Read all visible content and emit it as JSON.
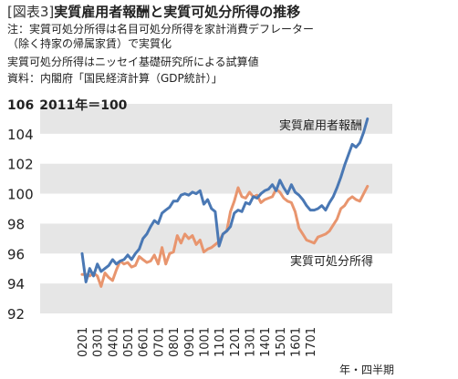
{
  "figure": {
    "label": "[図表3]",
    "title": "実質雇用者報酬と実質可処分所得の推移",
    "notes": [
      "注：実質可処分所得は名目可処分所得を家計消費デフレーター",
      "（除く持家の帰属家賃）で実質化",
      "実質可処分所得はニッセイ基礎研究所による試算値",
      "資料：内閣府「国民経済計算（GDP統計）」"
    ]
  },
  "chart_data": {
    "type": "line",
    "y_unit_label": "2011年＝100",
    "xlabel": "年・四半期",
    "ylim": [
      92,
      106
    ],
    "yticks": [
      92,
      94,
      96,
      98,
      100,
      102,
      104,
      106
    ],
    "grid": "horizontal bands",
    "x_tick_labels": [
      "0201",
      "0301",
      "0401",
      "0501",
      "0601",
      "0701",
      "0801",
      "0901",
      "1001",
      "1101",
      "1201",
      "1301",
      "1401",
      "1501",
      "1601",
      "1701"
    ],
    "x_start": "2002Q1",
    "series": [
      {
        "name": "実質雇用者報酬",
        "color": "#4a78b4",
        "values": [
          96.0,
          94.1,
          95.0,
          94.5,
          95.3,
          94.8,
          95.0,
          95.2,
          95.6,
          95.3,
          95.5,
          95.6,
          95.9,
          95.6,
          96.0,
          96.3,
          97.0,
          97.3,
          97.8,
          98.2,
          98.0,
          98.7,
          98.9,
          99.1,
          99.5,
          99.5,
          99.9,
          100.0,
          99.9,
          100.1,
          100.0,
          100.2,
          99.3,
          99.6,
          99.0,
          98.8,
          96.5,
          97.3,
          97.5,
          97.8,
          98.7,
          98.9,
          98.8,
          99.4,
          99.3,
          99.8,
          99.7,
          100.0,
          100.2,
          100.3,
          100.6,
          100.2,
          100.9,
          100.4,
          100.0,
          100.6,
          100.1,
          99.9,
          99.6,
          99.2,
          98.9,
          98.9,
          99.0,
          99.2,
          98.9,
          99.4,
          99.8,
          100.4,
          101.1,
          101.9,
          102.6,
          103.3,
          103.1,
          103.4,
          104.1,
          105.0
        ]
      },
      {
        "name": "実質可処分所得",
        "color": "#e8956e",
        "values": [
          94.6,
          94.6,
          94.5,
          94.7,
          94.5,
          93.8,
          94.7,
          94.4,
          94.2,
          94.9,
          95.5,
          95.3,
          95.4,
          95.1,
          95.2,
          95.8,
          95.6,
          95.4,
          95.5,
          95.9,
          95.3,
          96.4,
          95.3,
          96.0,
          96.1,
          97.2,
          96.7,
          97.3,
          97.0,
          97.2,
          96.6,
          96.9,
          96.1,
          96.3,
          96.4,
          96.6,
          96.8,
          97.3,
          97.5,
          98.8,
          99.5,
          100.4,
          99.8,
          99.7,
          100.1,
          99.8,
          99.9,
          99.4,
          99.6,
          99.7,
          99.8,
          100.3,
          100.1,
          99.7,
          99.5,
          99.4,
          98.8,
          97.7,
          97.3,
          96.9,
          96.8,
          96.7,
          97.1,
          97.2,
          97.3,
          97.5,
          97.9,
          98.3,
          99.0,
          99.2,
          99.6,
          99.8,
          99.6,
          99.5,
          100.0,
          100.5
        ]
      }
    ]
  }
}
